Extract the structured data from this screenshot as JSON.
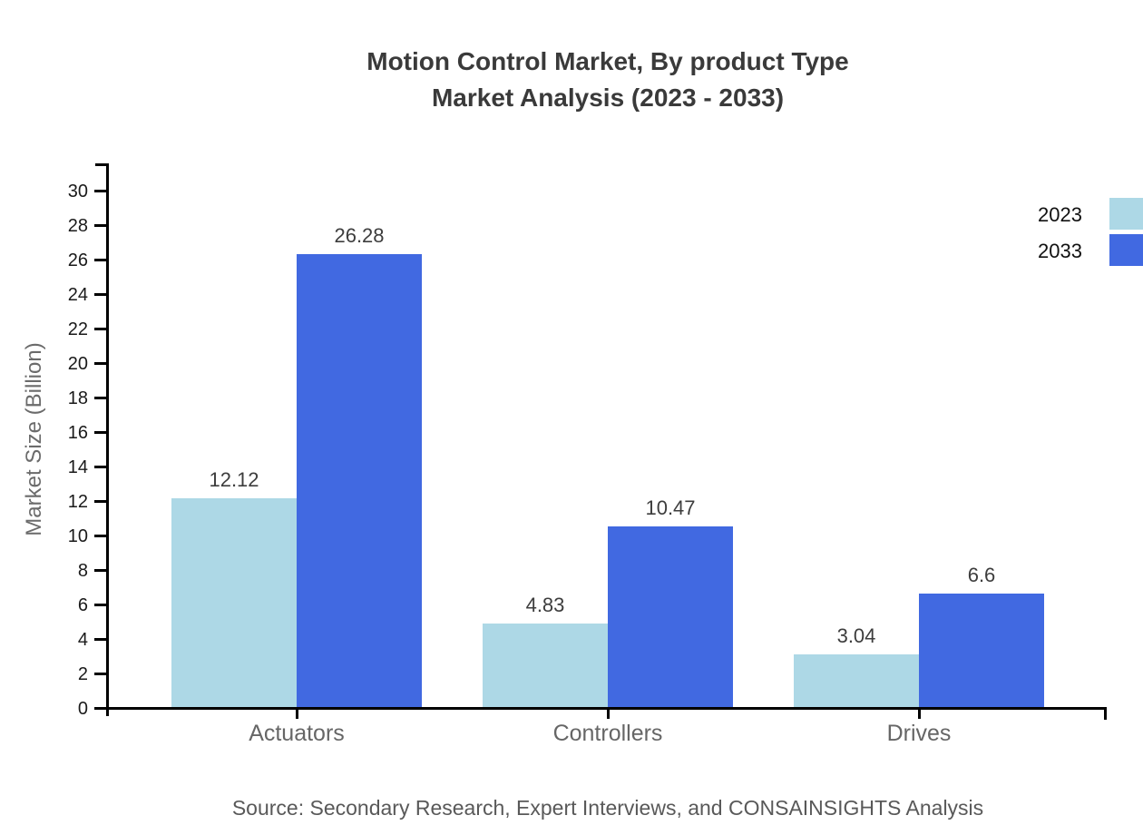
{
  "title": {
    "line1": "Motion Control Market, By product Type",
    "line2": "Market Analysis (2023 - 2033)"
  },
  "chart_data": {
    "type": "bar",
    "title": "Motion Control Market, By product Type Market Analysis (2023 - 2033)",
    "categories": [
      "Actuators",
      "Controllers",
      "Drives"
    ],
    "series": [
      {
        "name": "2023",
        "color": "#ADD8E6",
        "values": [
          12.12,
          4.83,
          3.04
        ]
      },
      {
        "name": "2033",
        "color": "#4169E1",
        "values": [
          26.28,
          10.47,
          6.6
        ]
      }
    ],
    "xlabel": "",
    "ylabel": "Market Size (Billion)",
    "ylim": [
      0,
      30
    ],
    "yticks": [
      0,
      2,
      4,
      6,
      8,
      10,
      12,
      14,
      16,
      18,
      20,
      22,
      24,
      26,
      28,
      30
    ],
    "grid": false,
    "legend_position": "top-right",
    "bar_value_labels": true
  },
  "legend": {
    "items": [
      {
        "label": "2023",
        "color": "#ADD8E6"
      },
      {
        "label": "2033",
        "color": "#4169E1"
      }
    ]
  },
  "source": "Source: Secondary Research, Expert Interviews, and CONSAINSIGHTS Analysis",
  "colors": {
    "background": "#FFFFFF",
    "bar_2023": "#ADD8E6",
    "bar_2033": "#4169E1",
    "axis_line": "#000000",
    "title_text": "#3A3A3A",
    "tick_text": "#1A1A1A",
    "muted_text": "#666666",
    "value_text": "#3D3D3D",
    "source_text": "#595959"
  }
}
